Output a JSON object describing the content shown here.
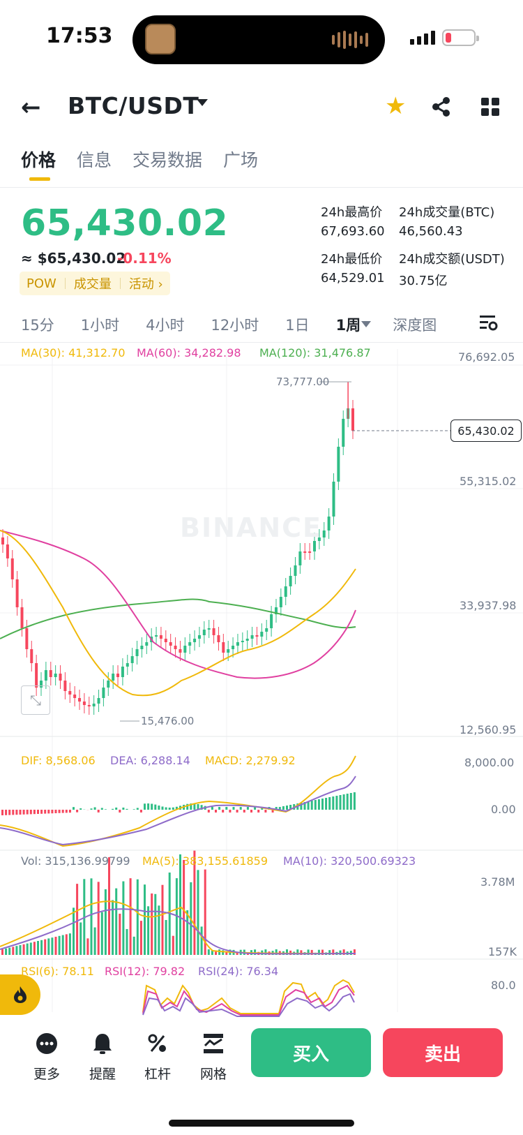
{
  "status_bar": {
    "time": "17:53"
  },
  "header": {
    "pair": "BTC/USDT"
  },
  "tabs": [
    {
      "label": "价格"
    },
    {
      "label": "信息"
    },
    {
      "label": "交易数据"
    },
    {
      "label": "广场"
    }
  ],
  "price": {
    "last": "65,430.02",
    "usd": "≈ $65,430.02",
    "change": "-0.11%",
    "tags": [
      "POW",
      "成交量",
      "活动 ›"
    ]
  },
  "stats": {
    "high_label": "24h最高价",
    "high_value": "67,693.60",
    "vol_btc_label": "24h成交量(BTC)",
    "vol_btc_value": "46,560.43",
    "low_label": "24h最低价",
    "low_value": "64,529.01",
    "vol_usdt_label": "24h成交额(USDT)",
    "vol_usdt_value": "30.75亿"
  },
  "timeframes": {
    "items": [
      "15分",
      "1小时",
      "4小时",
      "12小时",
      "1日",
      "1周"
    ],
    "selected": "1周",
    "depth": "深度图"
  },
  "main_chart": {
    "ma30": "MA(30): 41,312.70",
    "ma60": "MA(60): 34,282.98",
    "ma120": "MA(120): 31,476.87",
    "axis": [
      "76,692.05",
      "55,315.02",
      "33,937.98",
      "12,560.95"
    ],
    "high_marker": "73,777.00",
    "low_marker": "15,476.00",
    "current": "65,430.02",
    "watermark": "BINANCE"
  },
  "macd": {
    "dif": "DIF: 8,568.06",
    "dea": "DEA: 6,288.14",
    "macd": "MACD: 2,279.92",
    "axis": [
      "8,000.00",
      "0.00"
    ]
  },
  "volume": {
    "vol": "Vol: 315,136.99799",
    "ma5": "MA(5): 383,155.61859",
    "ma10": "MA(10): 320,500.69323",
    "axis": [
      "3.78M",
      "157K"
    ]
  },
  "rsi": {
    "rsi6": "RSI(6): 78.11",
    "rsi12": "RSI(12): 79.82",
    "rsi24": "RSI(24): 76.34",
    "axis": [
      "80.0"
    ]
  },
  "bottom_bar": {
    "more": "更多",
    "alert": "提醒",
    "leverage": "杠杆",
    "grid": "网格",
    "buy": "买入",
    "sell": "卖出"
  },
  "colors": {
    "green": "#2ebd85",
    "red": "#f6465d",
    "yellow": "#f0b90b",
    "ma30": "#f0b90b",
    "ma60": "#e040a0",
    "ma120": "#4caf50",
    "purple": "#8e6bc9"
  }
}
